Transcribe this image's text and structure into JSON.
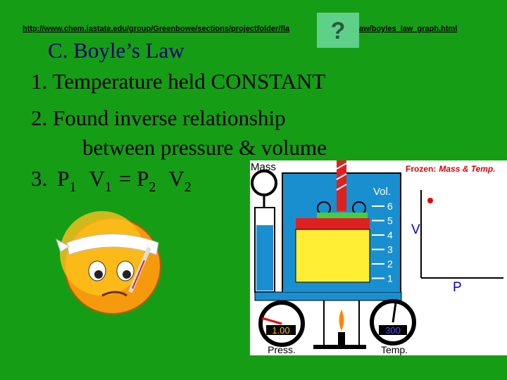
{
  "header": {
    "url_start": "http://www.chem.iastate.edu/group/Greenbowe/sections/projectfolder/fla",
    "url_end": "aw/boyles_law_graph.html",
    "help_button": "?"
  },
  "slide": {
    "title": "C.  Boyle’s Law",
    "items": [
      "1.  Temperature held CONSTANT",
      "2.  Found inverse relationship",
      "between pressure & volume"
    ],
    "formula": {
      "number": "3.",
      "p1": "P",
      "p1_sub": "1",
      "v1": "V",
      "v1_sub": "1",
      "equals": "= P",
      "p2_sub": "2",
      "v2": "V",
      "v2_sub": "2"
    }
  },
  "simulation": {
    "mass_label": "Mass",
    "status": "Frozen:",
    "status_detail": "Mass & Temp.",
    "volume_label": "Vol.",
    "volume_scale": [
      6,
      5,
      4,
      3,
      2,
      1
    ],
    "graph_y_label": "V",
    "graph_x_label": "P",
    "pressure_value": "1.00",
    "pressure_label": "Press.",
    "temperature_value": "300",
    "temperature_label": "Temp."
  }
}
